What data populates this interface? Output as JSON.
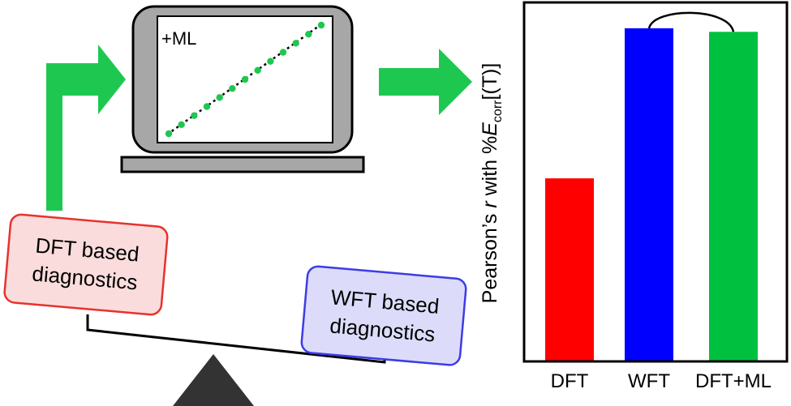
{
  "laptop": {
    "label": "+ML",
    "trend_points": 13
  },
  "boxes": {
    "dft": {
      "line1": "DFT based",
      "line2": "diagnostics",
      "fill": "#fadcdc",
      "border": "#e8322c"
    },
    "wft": {
      "line1": "WFT based",
      "line2": "diagnostics",
      "fill": "#dcdcfa",
      "border": "#3c3ce6"
    }
  },
  "arrow_color": "#1ec850",
  "chart_data": {
    "type": "bar",
    "categories": [
      "DFT",
      "WFT",
      "DFT+ML"
    ],
    "values": [
      0.51,
      0.93,
      0.92
    ],
    "colors": [
      "#ff0000",
      "#0000ff",
      "#00c040"
    ],
    "ylim": [
      0,
      1
    ],
    "ylabel_pre": "Pearson’s ",
    "ylabel_r": "r",
    "ylabel_mid": " with %",
    "ylabel_e": "E",
    "ylabel_sub": "corr",
    "ylabel_post": "[(T)]",
    "annotation": "≈",
    "grid": false
  }
}
